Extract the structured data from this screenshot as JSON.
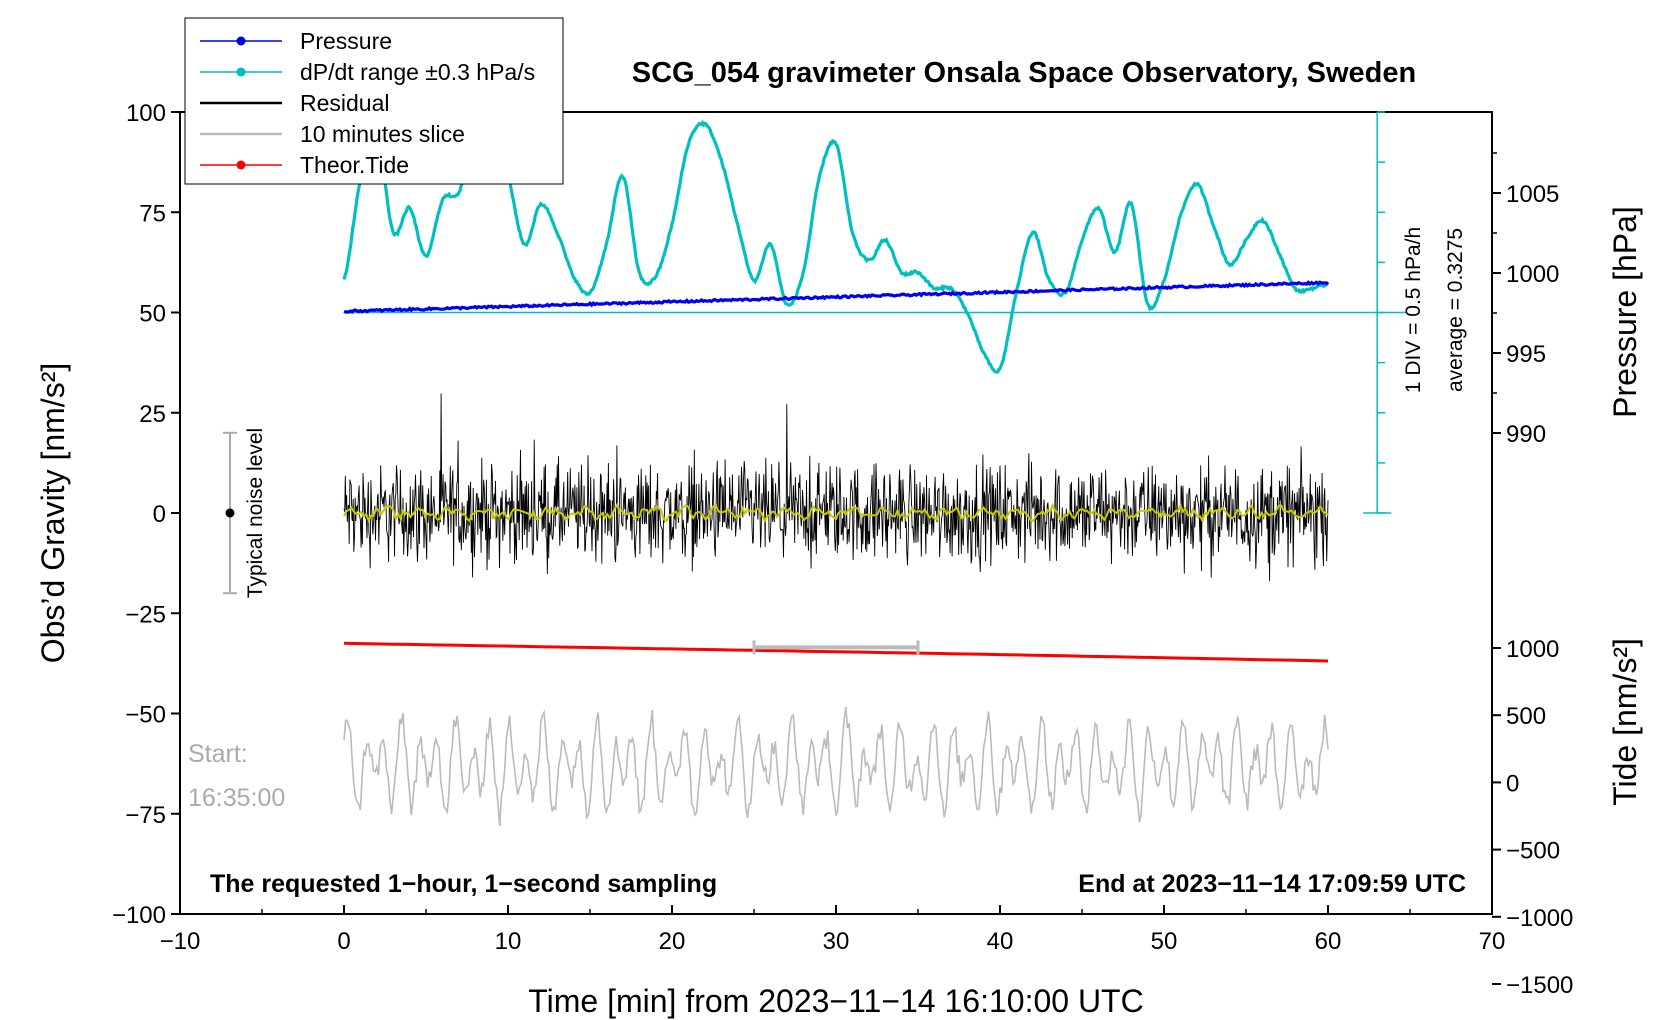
{
  "chart_data": {
    "type": "line",
    "title": "SCG_054 gravimeter Onsala Space Observatory, Sweden",
    "xlabel": "Time [min] from 2023−11−14 16:10:00 UTC",
    "ylabel_left": "Obs’d Gravity [nm/s²]",
    "ylabel_right_top": "Pressure [hPa]",
    "ylabel_right_bottom": "Tide [nm/s²]",
    "xlim": [
      -10,
      70
    ],
    "ylim_left": [
      -100,
      100
    ],
    "x_ticks": [
      "−10",
      "0",
      "10",
      "20",
      "30",
      "40",
      "50",
      "60",
      "70"
    ],
    "x_tick_values": [
      -10,
      0,
      10,
      20,
      30,
      40,
      50,
      60,
      70
    ],
    "y_ticks_left": [
      "100",
      "75",
      "50",
      "25",
      "0",
      "−25",
      "−50",
      "−75",
      "−100"
    ],
    "y_tick_values_left": [
      100,
      75,
      50,
      25,
      0,
      -25,
      -50,
      -75,
      -100
    ],
    "pressure_ticks": [
      "1005",
      "1000",
      "995",
      "990"
    ],
    "pressure_tick_values": [
      1005,
      1000,
      995,
      990
    ],
    "tide_ticks": [
      "1000",
      "500",
      "0",
      "−500",
      "−1000",
      "−1500"
    ],
    "tide_tick_values": [
      1000,
      500,
      0,
      -500,
      -1000,
      -1500
    ],
    "legend": {
      "position": "top-left",
      "entries": [
        {
          "label": "Pressure",
          "color": "#0000ee",
          "marker": true
        },
        {
          "label": "dP/dt range ±0.3 hPa/s",
          "color": "#00bfbf",
          "marker": true
        },
        {
          "label": "Residual",
          "color": "#000000",
          "marker": false
        },
        {
          "label": "10 minutes slice",
          "color": "#bbbbbb",
          "marker": false
        },
        {
          "label": "Theor.Tide",
          "color": "#ff0000",
          "marker": true
        }
      ]
    },
    "series": [
      {
        "name": "Pressure",
        "unit": "hPa",
        "x": [
          0,
          10,
          20,
          30,
          40,
          50,
          60
        ],
        "values": [
          997.6,
          997.9,
          998.2,
          998.5,
          998.8,
          999.1,
          999.4
        ]
      },
      {
        "name": "dP/dt",
        "unit": "gravity axis",
        "x": [
          0,
          1,
          2,
          3,
          4,
          5,
          6,
          7,
          8,
          9,
          10,
          11,
          12,
          13,
          14,
          15,
          16,
          17,
          18,
          19,
          20,
          21,
          22,
          23,
          24,
          25,
          26,
          27,
          28,
          29,
          30,
          31,
          32,
          33,
          34,
          35,
          36,
          37,
          38,
          39,
          40,
          41,
          42,
          43,
          44,
          45,
          46,
          47,
          48,
          49,
          50,
          51,
          52,
          53,
          54,
          55,
          56,
          57,
          58,
          59,
          60
        ],
        "values": [
          58,
          83,
          95,
          70,
          76,
          64,
          78,
          80,
          92,
          95,
          84,
          67,
          77,
          70,
          59,
          55,
          67,
          84,
          60,
          59,
          72,
          92,
          97,
          88,
          72,
          58,
          67,
          52,
          60,
          84,
          92,
          70,
          63,
          68,
          60,
          60,
          56,
          56,
          50,
          40,
          36,
          55,
          70,
          58,
          55,
          68,
          76,
          65,
          77,
          52,
          58,
          74,
          82,
          72,
          62,
          68,
          73,
          65,
          56,
          56,
          57
        ]
      },
      {
        "name": "Residual",
        "unit": "nm/s²",
        "range_min": -24,
        "range_max": 31,
        "mean": 0
      },
      {
        "name": "Residual smoothed",
        "color": "#c8c800",
        "mean": 0
      },
      {
        "name": "Theor.Tide",
        "unit": "nm/s²",
        "x": [
          0,
          10,
          20,
          30,
          40,
          50,
          60
        ],
        "values": [
          -32.5,
          -33.2,
          -33.9,
          -34.6,
          -35.3,
          -36.1,
          -36.9
        ]
      },
      {
        "name": "10 minutes slice",
        "x_start": 0,
        "x_end": 60,
        "center": -63,
        "amplitude": 14
      }
    ],
    "annotations": {
      "noise_label": "Typical noise level",
      "noise_range": [
        -20,
        20
      ],
      "div_label": "1 DIV = 0.5 hPa/h",
      "average_label": "average = 0.3275",
      "start_label": "Start:",
      "start_time": "16:35:00",
      "slice_window": [
        25,
        35
      ],
      "footer_left": "The requested 1−hour, 1−second sampling",
      "footer_right": "End at 2023−11−14 17:09:59 UTC"
    }
  }
}
